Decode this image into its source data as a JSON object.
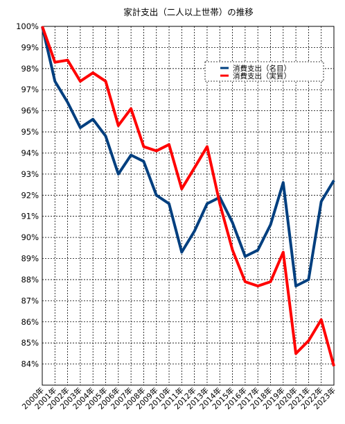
{
  "chart_data": {
    "type": "line",
    "title": "家計支出（二人以上世帯）の推移",
    "xlabel": "",
    "ylabel": "",
    "categories": [
      "2000年",
      "2001年",
      "2002年",
      "2003年",
      "2004年",
      "2005年",
      "2006年",
      "2007年",
      "2008年",
      "2009年",
      "2010年",
      "2011年",
      "2012年",
      "2013年",
      "2014年",
      "2015年",
      "2016年",
      "2017年",
      "2018年",
      "2019年",
      "2020年",
      "2021年",
      "2022年",
      "2023年"
    ],
    "y_tick_labels": [
      "100%",
      "99%",
      "98%",
      "97%",
      "96%",
      "95%",
      "94%",
      "93%",
      "92%",
      "91%",
      "90%",
      "89%",
      "88%",
      "87%",
      "86%",
      "85%",
      "84%"
    ],
    "ylim": [
      83,
      100
    ],
    "grid": true,
    "legend_position": "top-right",
    "series": [
      {
        "name": "消費支出（名目）",
        "color": "#003f7f",
        "values": [
          100.0,
          97.4,
          96.4,
          95.2,
          95.6,
          94.8,
          93.0,
          93.9,
          93.6,
          92.0,
          91.6,
          89.3,
          90.3,
          91.6,
          91.9,
          90.7,
          89.1,
          89.4,
          90.6,
          92.6,
          87.7,
          88.0,
          91.7,
          92.7
        ]
      },
      {
        "name": "消費支出（実質）",
        "color": "#ff0000",
        "values": [
          100.0,
          98.3,
          98.4,
          97.4,
          97.8,
          97.4,
          95.3,
          96.1,
          94.3,
          94.1,
          94.4,
          92.3,
          93.3,
          94.3,
          91.6,
          89.4,
          87.9,
          87.7,
          87.9,
          89.3,
          84.5,
          85.1,
          86.1,
          83.9
        ]
      }
    ]
  }
}
